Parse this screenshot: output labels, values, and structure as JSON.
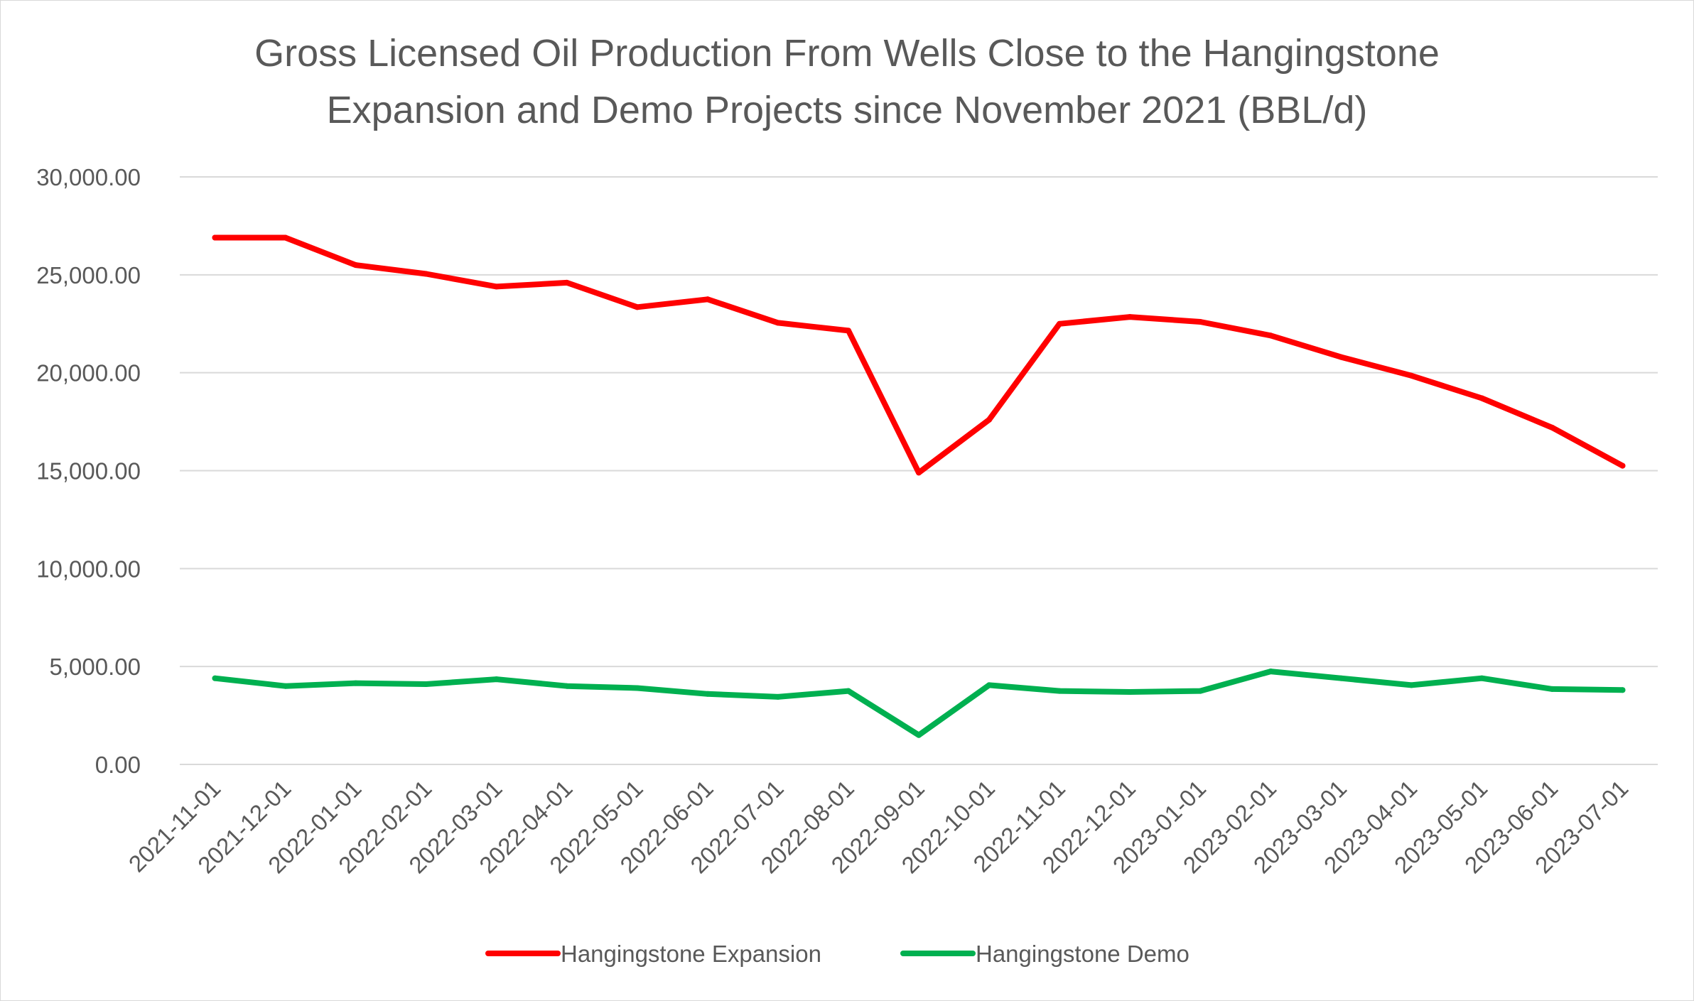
{
  "chart_data": {
    "type": "line",
    "title": "Gross Licensed Oil Production From Wells Close to the Hangingstone Expansion and Demo Projects since November 2021 (BBL/d)",
    "title_lines": [
      "Gross Licensed Oil Production From Wells Close to the Hangingstone",
      "Expansion and Demo Projects since November 2021 (BBL/d)"
    ],
    "xlabel": "",
    "ylabel": "",
    "ylim": [
      0,
      30000
    ],
    "y_ticks": [
      0,
      5000,
      10000,
      15000,
      20000,
      25000,
      30000
    ],
    "y_tick_labels": [
      "0.00",
      "5,000.00",
      "10,000.00",
      "15,000.00",
      "20,000.00",
      "25,000.00",
      "30,000.00"
    ],
    "grid": true,
    "legend_position": "bottom",
    "categories": [
      "2021-11-01",
      "2021-12-01",
      "2022-01-01",
      "2022-02-01",
      "2022-03-01",
      "2022-04-01",
      "2022-05-01",
      "2022-06-01",
      "2022-07-01",
      "2022-08-01",
      "2022-09-01",
      "2022-10-01",
      "2022-11-01",
      "2022-12-01",
      "2023-01-01",
      "2023-02-01",
      "2023-03-01",
      "2023-04-01",
      "2023-05-01",
      "2023-06-01",
      "2023-07-01"
    ],
    "series": [
      {
        "name": "Hangingstone Expansion",
        "color": "#ff0000",
        "values": [
          26900,
          26900,
          25500,
          25050,
          24400,
          24600,
          23350,
          23750,
          22550,
          22150,
          14900,
          17600,
          22500,
          22850,
          22600,
          21900,
          20800,
          19850,
          18700,
          17200,
          15250
        ]
      },
      {
        "name": "Hangingstone Demo",
        "color": "#00b050",
        "values": [
          4400,
          4000,
          4150,
          4100,
          4350,
          4000,
          3900,
          3600,
          3450,
          3750,
          1500,
          4050,
          3750,
          3700,
          3750,
          4750,
          4400,
          4050,
          4400,
          3850,
          3800
        ]
      }
    ]
  }
}
